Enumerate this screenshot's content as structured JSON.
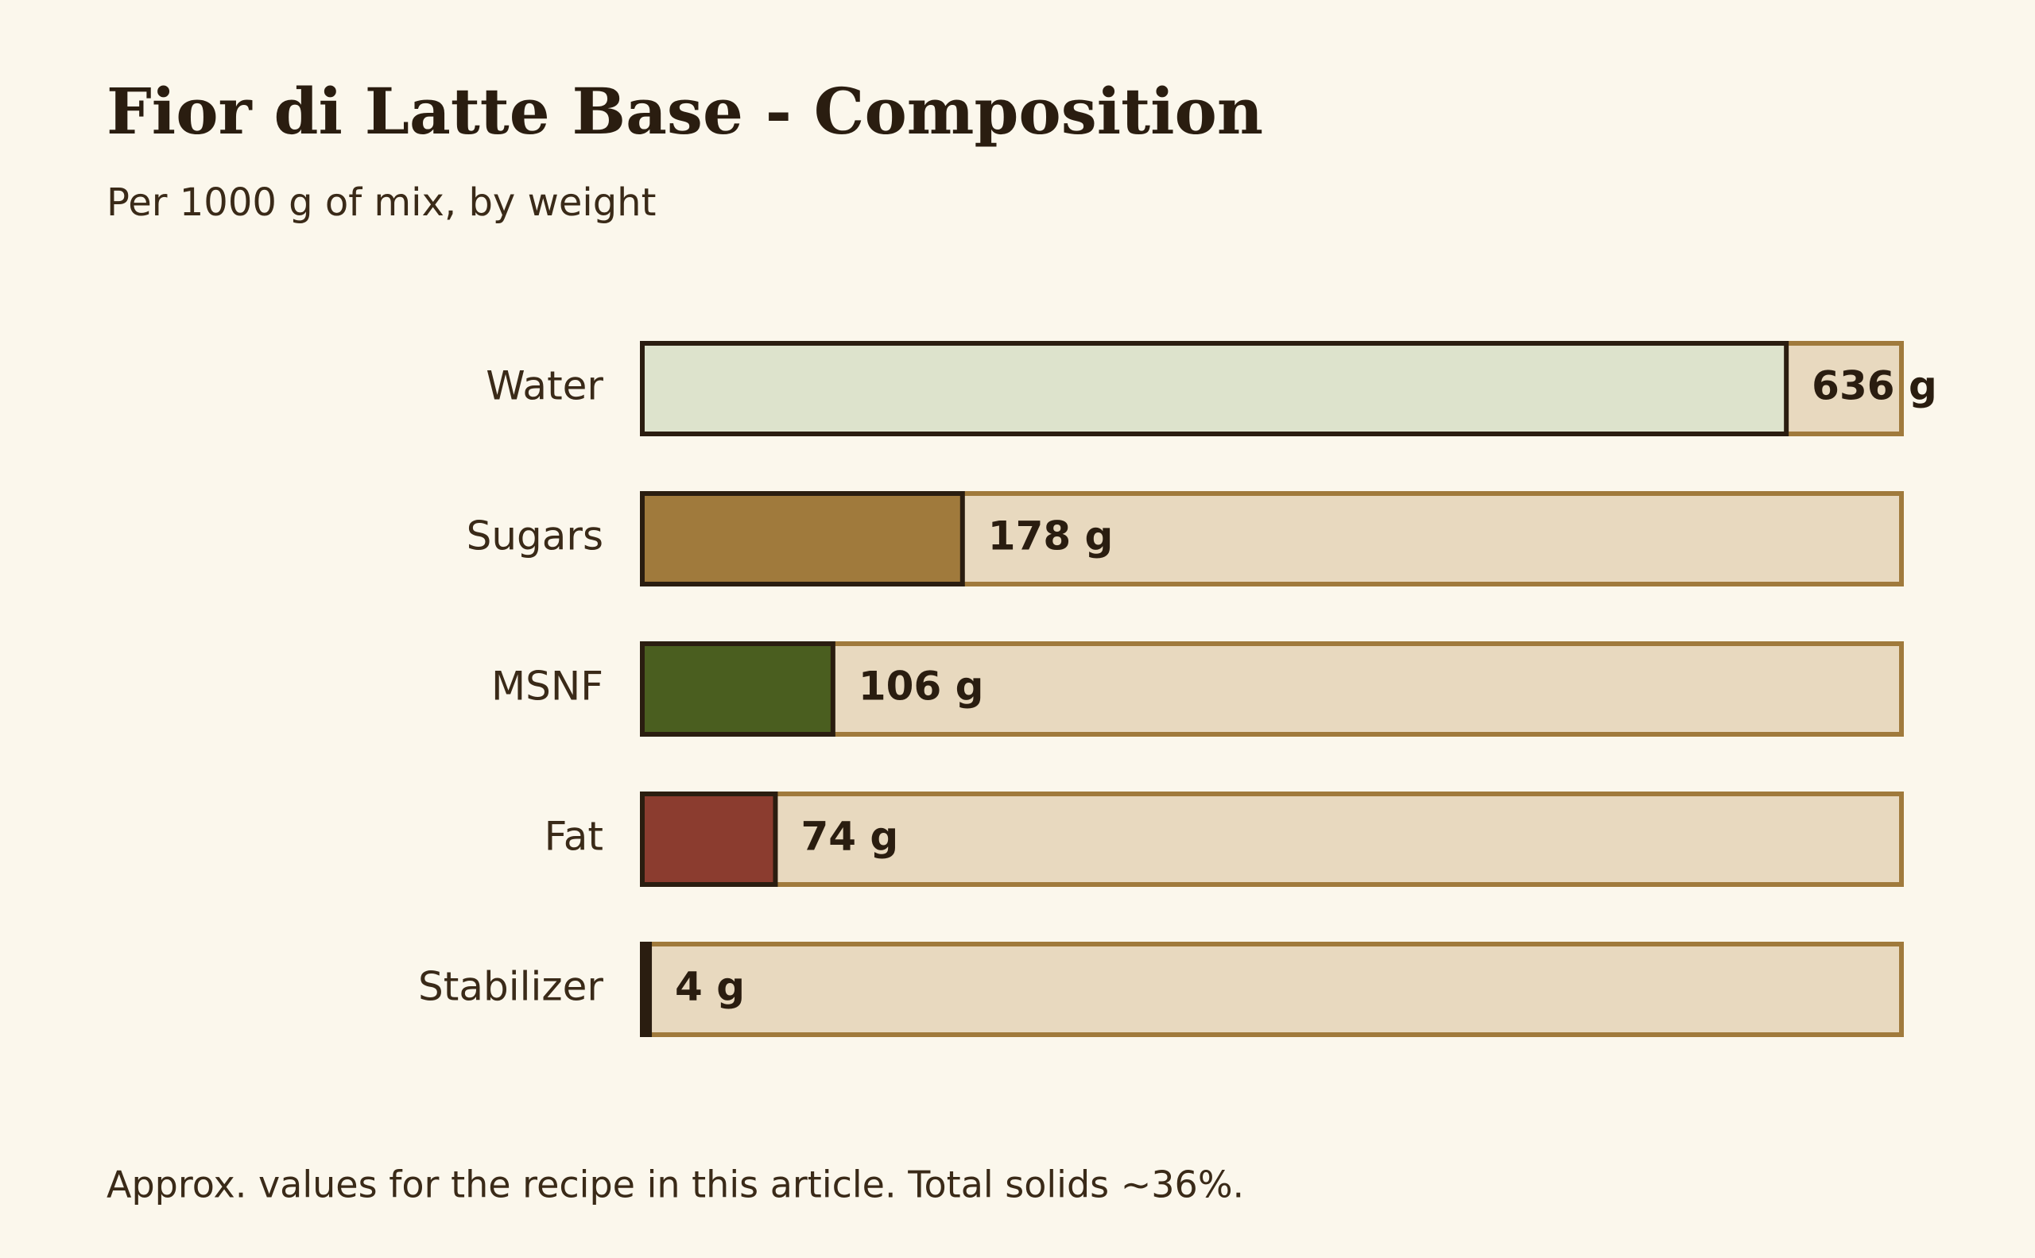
{
  "chart_data": {
    "type": "hbar",
    "title": "Fior di Latte Base - Composition",
    "subtitle": "Per 1000 g of mix, by weight",
    "footnote": "Approx. values for the recipe in this article. Total solids ~36%.",
    "categories": [
      "Water",
      "Sugars",
      "MSNF",
      "Fat",
      "Stabilizer"
    ],
    "values": [
      636,
      178,
      106,
      74,
      4
    ],
    "value_labels": [
      "636 g",
      "178 g",
      "106 g",
      "74 g",
      "4 g"
    ],
    "colors": [
      "#dde3cc",
      "#a07a3c",
      "#4a5e1f",
      "#8b3c2f",
      "#2a1d10"
    ],
    "xlim": [
      0,
      700
    ]
  }
}
